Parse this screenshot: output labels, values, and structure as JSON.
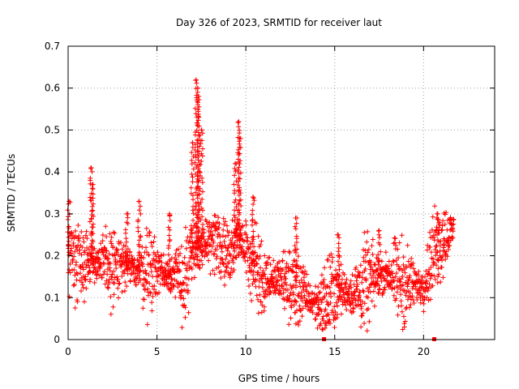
{
  "chart_data": {
    "type": "scatter",
    "title": "Day 326 of 2023, SRMTID for receiver laut",
    "xlabel": "GPS time / hours",
    "ylabel": "SRMTID / TECUs",
    "xlim": [
      0,
      24
    ],
    "ylim": [
      0,
      0.7
    ],
    "x_ticks": [
      0,
      5,
      10,
      15,
      20
    ],
    "x_tick_labels": [
      "0",
      "5",
      "10",
      "15",
      "20"
    ],
    "y_ticks": [
      0,
      0.1,
      0.2,
      0.3,
      0.4,
      0.5,
      0.6,
      0.7
    ],
    "y_tick_labels": [
      "0",
      "0.1",
      "0.2",
      "0.3",
      "0.4",
      "0.5",
      "0.6",
      "0.7"
    ],
    "grid": true,
    "marker": "plus",
    "color": "#ff0000",
    "series": [
      {
        "name": "SRMTID",
        "baseline": [
          [
            0.0,
            0.21
          ],
          [
            1.0,
            0.19
          ],
          [
            2.0,
            0.18
          ],
          [
            3.0,
            0.17
          ],
          [
            4.0,
            0.17
          ],
          [
            5.0,
            0.17
          ],
          [
            6.0,
            0.15
          ],
          [
            6.6,
            0.14
          ],
          [
            7.0,
            0.2
          ],
          [
            7.5,
            0.22
          ],
          [
            8.0,
            0.24
          ],
          [
            9.0,
            0.21
          ],
          [
            9.5,
            0.24
          ],
          [
            10.0,
            0.22
          ],
          [
            10.5,
            0.17
          ],
          [
            11.0,
            0.15
          ],
          [
            12.0,
            0.14
          ],
          [
            13.0,
            0.12
          ],
          [
            13.5,
            0.1
          ],
          [
            14.0,
            0.08
          ],
          [
            14.5,
            0.09
          ],
          [
            15.0,
            0.12
          ],
          [
            16.0,
            0.11
          ],
          [
            17.0,
            0.14
          ],
          [
            18.0,
            0.16
          ],
          [
            19.0,
            0.13
          ],
          [
            20.0,
            0.13
          ],
          [
            20.5,
            0.2
          ],
          [
            21.0,
            0.24
          ],
          [
            21.7,
            0.26
          ]
        ],
        "peaks": [
          {
            "x": 0.05,
            "y": 0.33
          },
          {
            "x": 1.3,
            "y": 0.41
          },
          {
            "x": 1.35,
            "y": 0.37
          },
          {
            "x": 3.3,
            "y": 0.3
          },
          {
            "x": 4.0,
            "y": 0.33
          },
          {
            "x": 5.7,
            "y": 0.3
          },
          {
            "x": 7.0,
            "y": 0.47
          },
          {
            "x": 7.2,
            "y": 0.62
          },
          {
            "x": 7.3,
            "y": 0.6
          },
          {
            "x": 7.35,
            "y": 0.58
          },
          {
            "x": 7.5,
            "y": 0.5
          },
          {
            "x": 9.4,
            "y": 0.42
          },
          {
            "x": 9.6,
            "y": 0.52
          },
          {
            "x": 9.65,
            "y": 0.48
          },
          {
            "x": 10.4,
            "y": 0.34
          },
          {
            "x": 12.8,
            "y": 0.29
          },
          {
            "x": 15.2,
            "y": 0.25
          },
          {
            "x": 17.5,
            "y": 0.26
          },
          {
            "x": 20.8,
            "y": 0.3
          }
        ],
        "zero_values": [
          {
            "x": 14.4,
            "y": 0.0
          },
          {
            "x": 20.6,
            "y": 0.0
          }
        ]
      }
    ]
  }
}
